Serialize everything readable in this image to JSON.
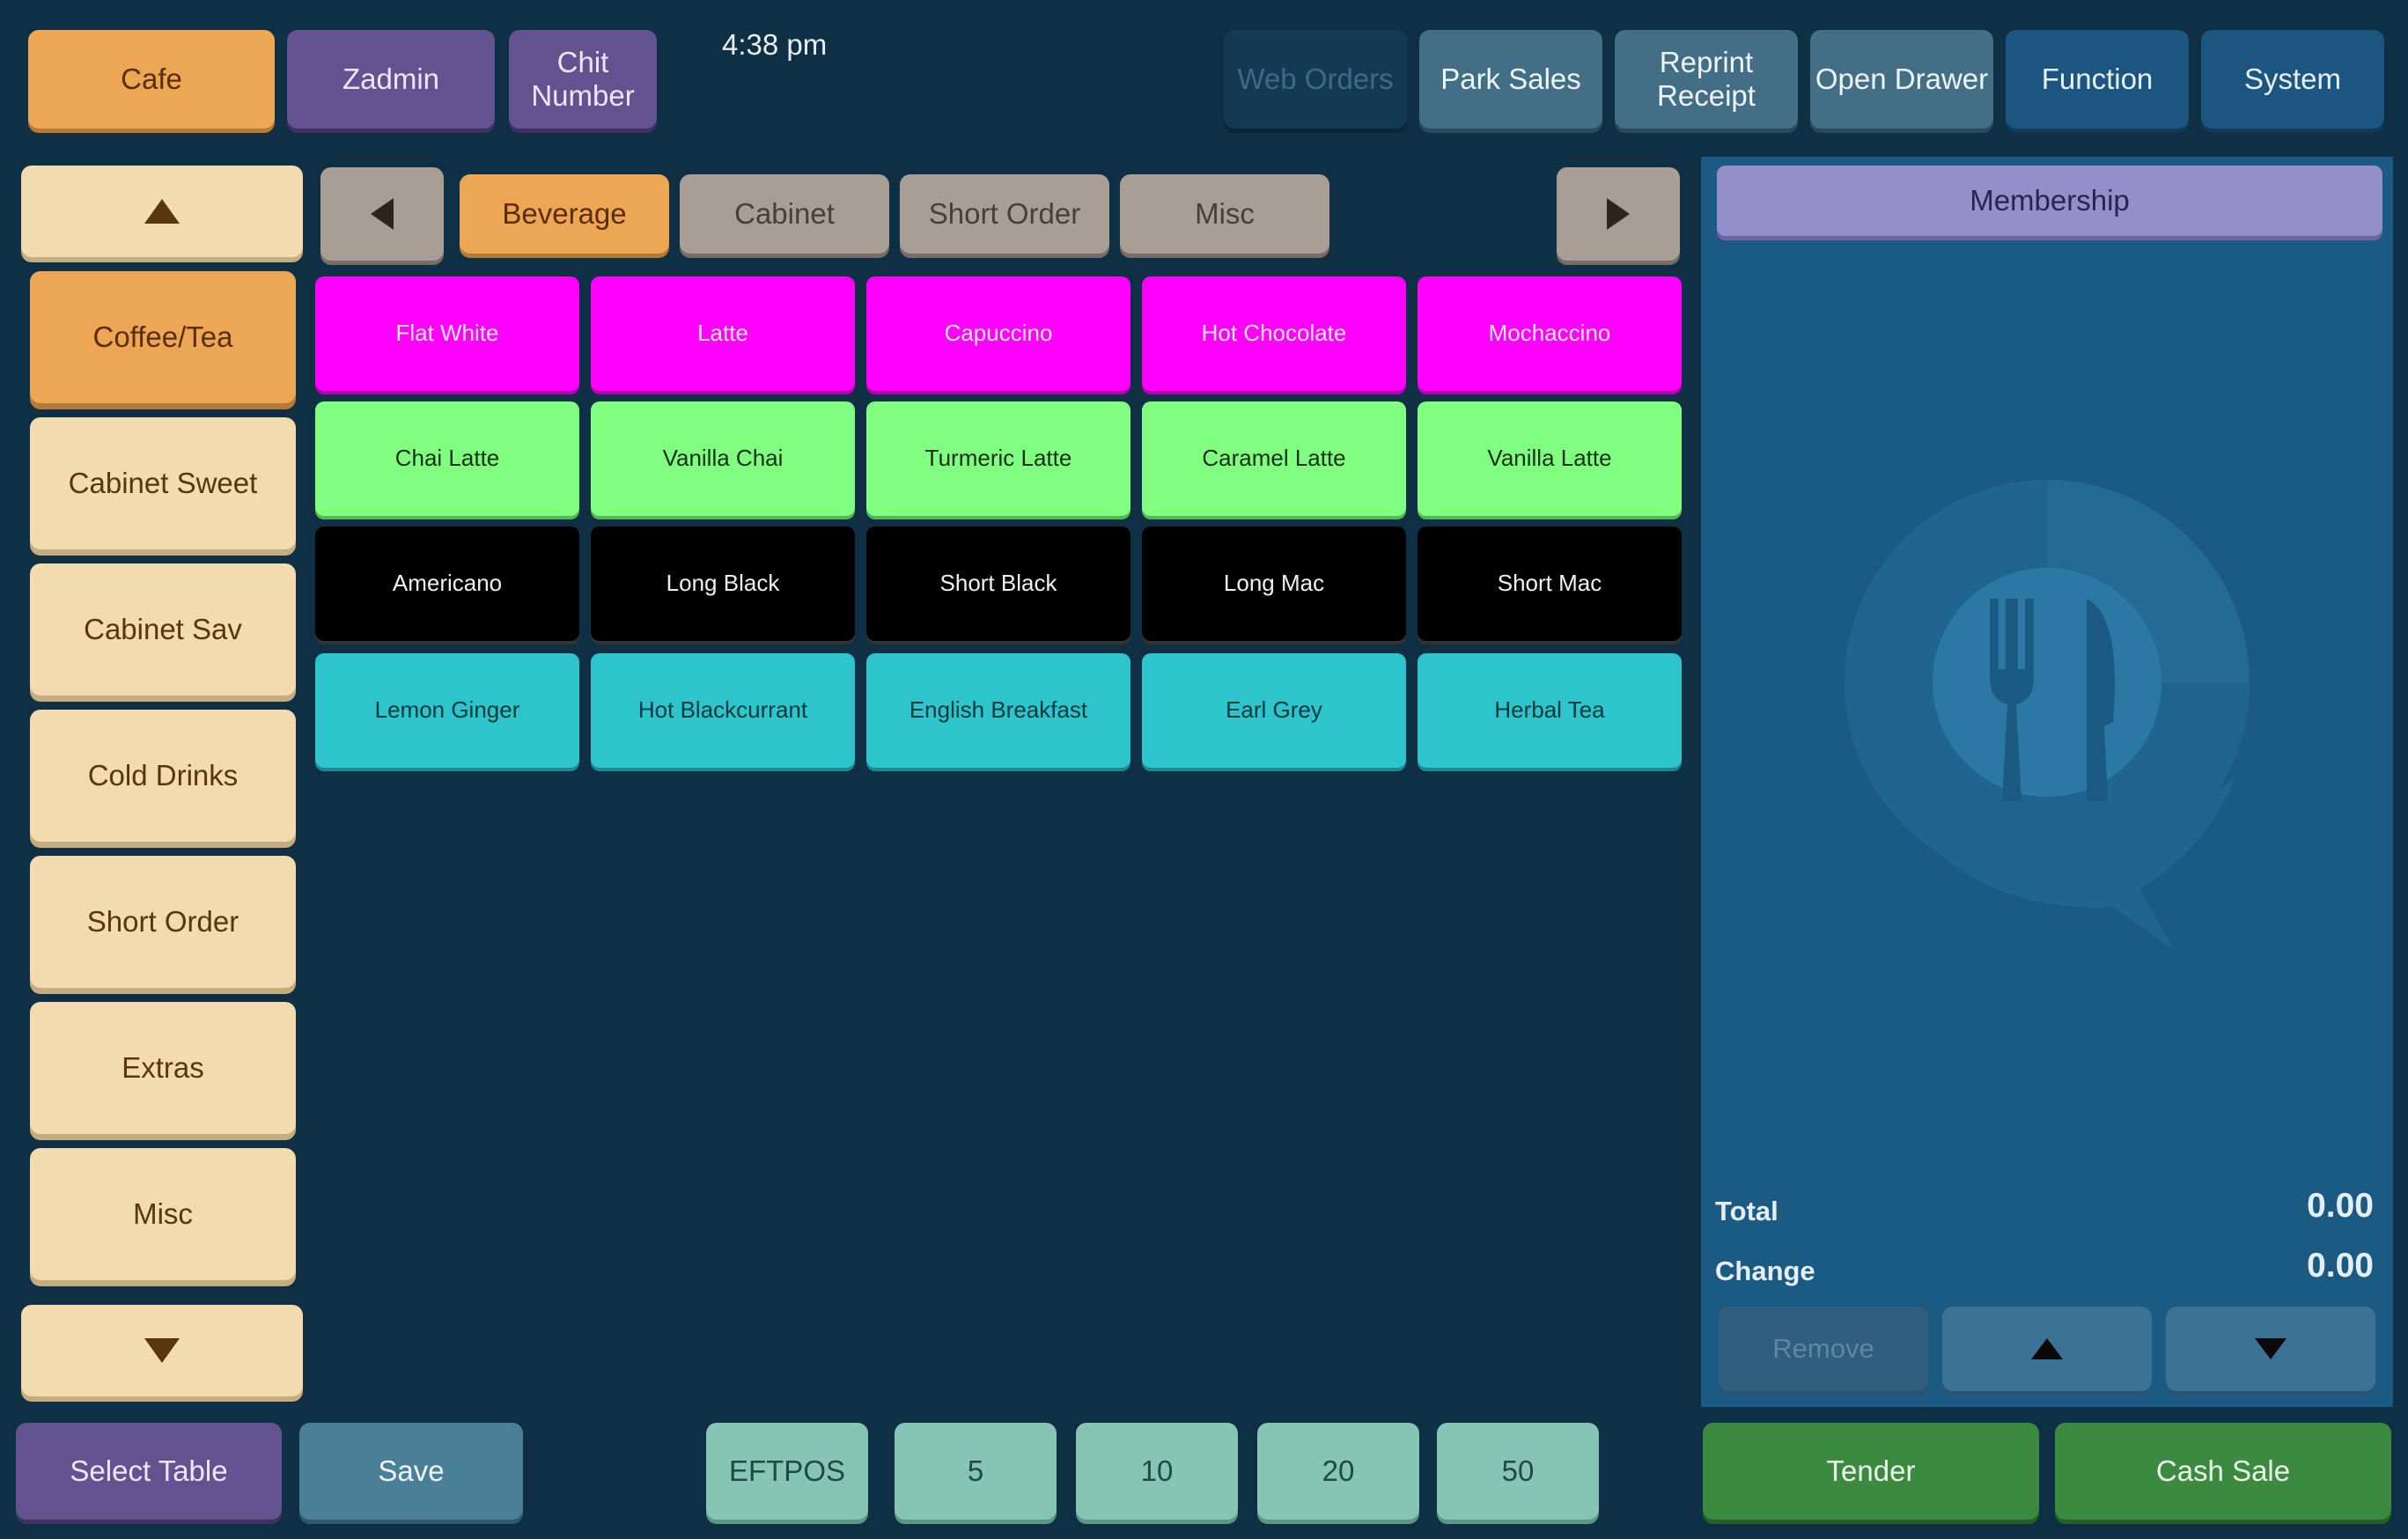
{
  "top_bar": {
    "left_buttons": [
      "Cafe",
      "Zadmin",
      "Chit Number"
    ],
    "time": "4:38 pm",
    "right_buttons": [
      "Web Orders",
      "Park Sales",
      "Reprint Receipt",
      "Open Drawer",
      "Function",
      "System"
    ]
  },
  "categories": {
    "items": [
      "Coffee/Tea",
      "Cabinet Sweet",
      "Cabinet Sav",
      "Cold Drinks",
      "Short Order",
      "Extras",
      "Misc"
    ],
    "active": "Coffee/Tea"
  },
  "tabs": {
    "items": [
      "Beverage",
      "Cabinet",
      "Short Order",
      "Misc"
    ],
    "active": "Beverage"
  },
  "products": {
    "rows": [
      [
        "Flat White",
        "Latte",
        "Capuccino",
        "Hot Chocolate",
        "Mochaccino"
      ],
      [
        "Chai Latte",
        "Vanilla Chai",
        "Turmeric Latte",
        "Caramel Latte",
        "Vanilla Latte"
      ],
      [
        "Americano",
        "Long Black",
        "Short Black",
        "Long Mac",
        "Short Mac"
      ],
      [
        "Lemon Ginger",
        "Hot Blackcurrant",
        "English Breakfast",
        "Earl Grey",
        "Herbal Tea"
      ]
    ],
    "row_colors": [
      "#ff00ff",
      "#80ff80",
      "#000000",
      "#2ec4cb"
    ]
  },
  "order_panel": {
    "membership": "Membership",
    "total_label": "Total",
    "total_value": "0.00",
    "change_label": "Change",
    "change_value": "0.00",
    "remove_label": "Remove"
  },
  "bottom_bar": {
    "select_table": "Select Table",
    "save": "Save",
    "eftpos": "EFTPOS",
    "quick_amounts": [
      "5",
      "10",
      "20",
      "50"
    ],
    "tender": "Tender",
    "cash_sale": "Cash Sale"
  },
  "colors": {
    "background": "#0f2f45",
    "accent_orange": "#eda653",
    "panel_blue": "#1b5a82",
    "tender_green": "#3c8a3f"
  },
  "icons": [
    "up-arrow-icon",
    "down-arrow-icon",
    "left-arrow-icon",
    "right-arrow-icon",
    "fork-knife-logo-icon"
  ]
}
